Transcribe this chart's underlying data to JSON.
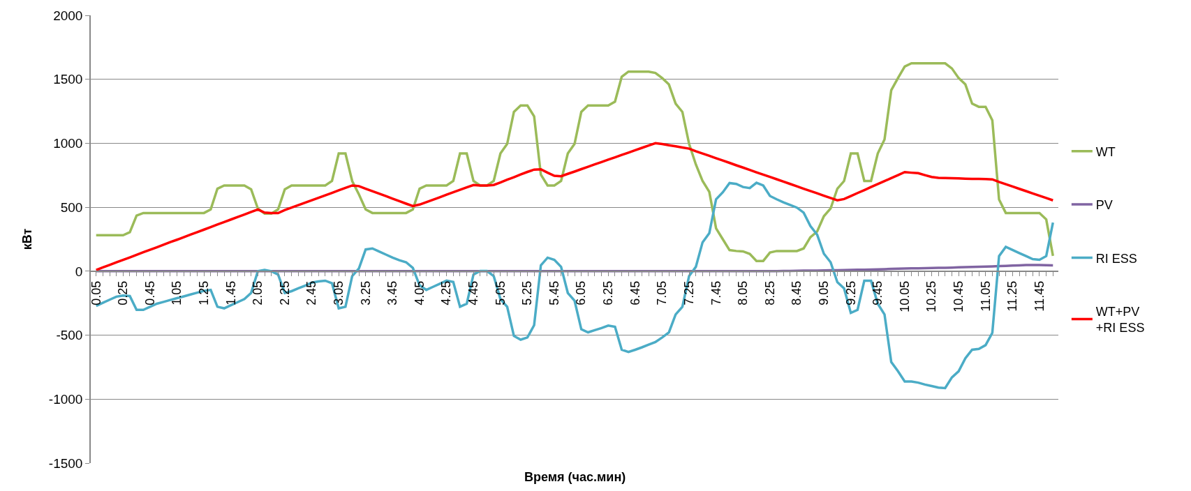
{
  "chart_data": {
    "type": "line",
    "xlabel": "Время (час.мин)",
    "ylabel": "кВт",
    "categories": [
      "0.05",
      null,
      null,
      null,
      "0.25",
      null,
      null,
      null,
      "0.45",
      null,
      null,
      null,
      "1.05",
      null,
      null,
      null,
      "1.25",
      null,
      null,
      null,
      "1.45",
      null,
      null,
      null,
      "2.05",
      null,
      null,
      null,
      "2.25",
      null,
      null,
      null,
      "2.45",
      null,
      null,
      null,
      "3.05",
      null,
      null,
      null,
      "3.25",
      null,
      null,
      null,
      "3.45",
      null,
      null,
      null,
      "4.05",
      null,
      null,
      null,
      "4.25",
      null,
      null,
      null,
      "4.45",
      null,
      null,
      null,
      "5.05",
      null,
      null,
      null,
      "5.25",
      null,
      null,
      null,
      "5.45",
      null,
      null,
      null,
      "6.05",
      null,
      null,
      null,
      "6.25",
      null,
      null,
      null,
      "6.45",
      null,
      null,
      null,
      "7.05",
      null,
      null,
      null,
      "7.25",
      null,
      null,
      null,
      "7.45",
      null,
      null,
      null,
      "8.05",
      null,
      null,
      null,
      "8.25",
      null,
      null,
      null,
      "8.45",
      null,
      null,
      null,
      "9.05",
      null,
      null,
      null,
      "9.25",
      null,
      null,
      null,
      "9.45",
      null,
      null,
      null,
      "10.05",
      null,
      null,
      null,
      "10.25",
      null,
      null,
      null,
      "10.45",
      null,
      null,
      null,
      "11.05",
      null,
      null,
      null,
      "11.25",
      null,
      null,
      null,
      "11.45",
      null,
      null
    ],
    "series": [
      {
        "name": "WT",
        "color": "#9bbb59",
        "values": [
          281,
          281,
          281,
          281,
          281,
          305,
          435,
          455,
          455,
          455,
          455,
          455,
          455,
          455,
          455,
          455,
          455,
          483,
          645,
          670,
          670,
          670,
          670,
          640,
          490,
          450,
          450,
          483,
          640,
          670,
          670,
          670,
          670,
          670,
          670,
          705,
          920,
          920,
          705,
          600,
          483,
          455,
          455,
          455,
          455,
          455,
          455,
          483,
          645,
          670,
          670,
          670,
          670,
          705,
          920,
          920,
          705,
          670,
          670,
          705,
          920,
          995,
          1245,
          1295,
          1295,
          1210,
          755,
          670,
          670,
          705,
          920,
          995,
          1245,
          1295,
          1295,
          1295,
          1295,
          1325,
          1520,
          1560,
          1560,
          1560,
          1560,
          1550,
          1510,
          1460,
          1310,
          1245,
          995,
          835,
          705,
          620,
          335,
          250,
          165,
          158,
          155,
          135,
          80,
          80,
          146,
          158,
          158,
          158,
          158,
          178,
          266,
          310,
          430,
          490,
          645,
          705,
          920,
          920,
          705,
          705,
          920,
          1030,
          1415,
          1510,
          1600,
          1625,
          1625,
          1625,
          1625,
          1625,
          1625,
          1585,
          1510,
          1460,
          1310,
          1285,
          1285,
          1180,
          560,
          455,
          455,
          455,
          455,
          455,
          455,
          405,
          120
        ]
      },
      {
        "name": "PV",
        "color": "#8064a2",
        "values": [
          0,
          0,
          0,
          0,
          0,
          0,
          0,
          0,
          0,
          0,
          0,
          0,
          0,
          0,
          0,
          0,
          0,
          0,
          0,
          0,
          0,
          0,
          0,
          0,
          0,
          0,
          0,
          0,
          0,
          0,
          0,
          0,
          0,
          0,
          0,
          0,
          0,
          0,
          0,
          0,
          0,
          0,
          0,
          0,
          0,
          0,
          0,
          0,
          0,
          0,
          0,
          0,
          0,
          0,
          0,
          0,
          0,
          0,
          0,
          0,
          0,
          0,
          0,
          0,
          0,
          0,
          0,
          0,
          0,
          0,
          0,
          0,
          0,
          0,
          0,
          0,
          0,
          0,
          0,
          0,
          0,
          0,
          0,
          0,
          0,
          0,
          0,
          0,
          0,
          0,
          0,
          0,
          0,
          0,
          0,
          0,
          0,
          0,
          0,
          0,
          1,
          1,
          2,
          2,
          3,
          4,
          4,
          5,
          6,
          7,
          8,
          9,
          10,
          11,
          12,
          13,
          14,
          16,
          18,
          20,
          21,
          22,
          23,
          24,
          25,
          26,
          27,
          28,
          30,
          32,
          33,
          35,
          36,
          38,
          40,
          42,
          44,
          46,
          48,
          48,
          48,
          47,
          46
        ]
      },
      {
        "name": "RI ESS",
        "color": "#4bacc6",
        "values": [
          -271,
          -247,
          -223,
          -199,
          -190,
          -194,
          -302,
          -302,
          -278,
          -254,
          -240,
          -225,
          -211,
          -197,
          -182,
          -168,
          -154,
          -146,
          -278,
          -290,
          -266,
          -242,
          -218,
          -170,
          0,
          10,
          0,
          -26,
          -170,
          -156,
          -134,
          -113,
          -89,
          -80,
          -74,
          -94,
          -290,
          -278,
          -38,
          22,
          170,
          178,
          154,
          130,
          106,
          86,
          70,
          26,
          -110,
          -146,
          -122,
          -98,
          -74,
          -84,
          -278,
          -254,
          -26,
          2,
          2,
          -38,
          -218,
          -278,
          -506,
          -535,
          -518,
          -422,
          46,
          106,
          89,
          34,
          -170,
          -230,
          -454,
          -478,
          -461,
          -444,
          -425,
          -434,
          -614,
          -631,
          -614,
          -595,
          -574,
          -554,
          -518,
          -478,
          -338,
          -278,
          -38,
          34,
          226,
          298,
          562,
          617,
          689,
          682,
          658,
          650,
          691,
          670,
          588,
          562,
          538,
          518,
          497,
          458,
          353,
          286,
          137,
          70,
          -86,
          -134,
          -326,
          -302,
          -74,
          -74,
          -254,
          -338,
          -710,
          -782,
          -862,
          -862,
          -871,
          -886,
          -898,
          -910,
          -914,
          -830,
          -782,
          -680,
          -614,
          -607,
          -578,
          -482,
          118,
          190,
          166,
          142,
          118,
          94,
          89,
          118,
          380
        ]
      },
      {
        "name": "WT+PV\n+RI ESS",
        "color": "#ff0000",
        "values": [
          10,
          30,
          49,
          69,
          89,
          108,
          128,
          148,
          168,
          187,
          207,
          227,
          246,
          266,
          286,
          305,
          325,
          345,
          365,
          384,
          404,
          424,
          443,
          463,
          482,
          458,
          454,
          454,
          478,
          497,
          516,
          535,
          555,
          574,
          593,
          612,
          632,
          651,
          670,
          665,
          645,
          626,
          606,
          587,
          567,
          548,
          528,
          509,
          521,
          540,
          559,
          578,
          598,
          617,
          636,
          655,
          674,
          670,
          670,
          674,
          694,
          715,
          735,
          756,
          776,
          794,
          797,
          770,
          746,
          742,
          761,
          779,
          798,
          816,
          835,
          853,
          872,
          890,
          909,
          927,
          946,
          964,
          983,
          1001,
          994,
          985,
          976,
          967,
          958,
          938,
          920,
          902,
          883,
          865,
          847,
          828,
          810,
          792,
          773,
          755,
          737,
          719,
          700,
          682,
          664,
          645,
          627,
          609,
          590,
          572,
          554,
          564,
          587,
          611,
          634,
          658,
          681,
          704,
          728,
          751,
          775,
          770,
          766,
          751,
          737,
          730,
          728,
          727,
          725,
          723,
          722,
          721,
          720,
          718,
          698,
          680,
          662,
          644,
          626,
          608,
          590,
          572,
          554
        ]
      }
    ],
    "ylim": [
      -1500,
      2000
    ],
    "yticks": [
      -1500,
      -1000,
      -500,
      0,
      500,
      1000,
      1500,
      2000
    ],
    "grid": "y",
    "legend": "right",
    "marker": "none",
    "line_style": "solid"
  }
}
